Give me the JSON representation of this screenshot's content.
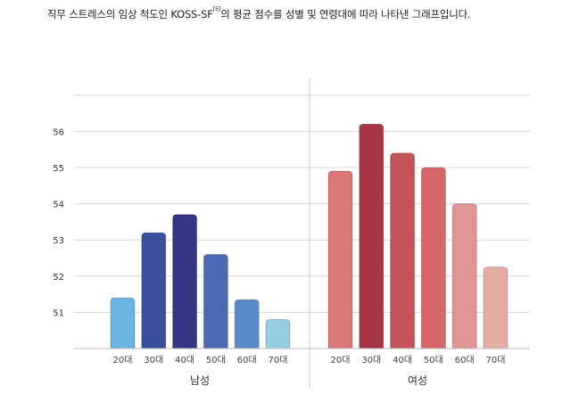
{
  "caption": {
    "text_before": "직무 스트레스의 임상 척도인 KOSS-SF",
    "superscript": "[5]",
    "text_after": "의 평균 점수를 성별 및 연령대에 따라 나타낸 그래프입니다."
  },
  "chart_data": {
    "type": "bar",
    "title": "",
    "xlabel": "",
    "ylabel": "",
    "ylim": [
      50,
      57
    ],
    "yticks": [
      51,
      52,
      53,
      54,
      55,
      56
    ],
    "grid": true,
    "categories": [
      "20대",
      "30대",
      "40대",
      "50대",
      "60대",
      "70대"
    ],
    "groups": [
      {
        "name": "남성",
        "values": [
          51.4,
          53.2,
          53.7,
          52.6,
          51.35,
          50.8
        ],
        "colors": [
          "#6cb4e4",
          "#3a4f9e",
          "#333585",
          "#4a6bb3",
          "#5b8ac8",
          "#95cde3"
        ]
      },
      {
        "name": "여성",
        "values": [
          54.9,
          56.2,
          55.4,
          55.0,
          54.0,
          52.25
        ],
        "colors": [
          "#d97876",
          "#a63543",
          "#c45259",
          "#d5676a",
          "#e09493",
          "#e5aba5"
        ]
      }
    ]
  }
}
